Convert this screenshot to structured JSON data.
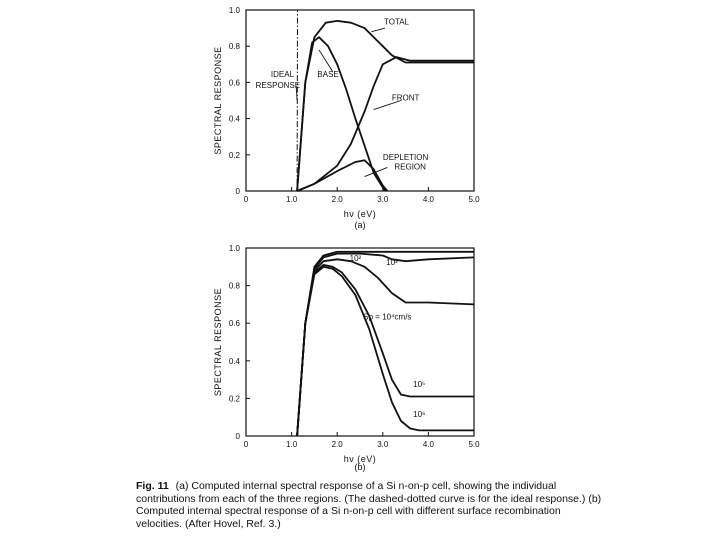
{
  "chart_data": [
    {
      "type": "line",
      "panel_label": "(a)",
      "xlabel": "hν (eV)",
      "ylabel": "SPECTRAL RESPONSE",
      "xlim": [
        0,
        5.0
      ],
      "ylim": [
        0,
        1.0
      ],
      "x_ticks": [
        "0",
        "1.0",
        "2.0",
        "3.0",
        "4.0",
        "5.0"
      ],
      "y_ticks": [
        "0",
        "0.2",
        "0.4",
        "0.6",
        "0.8",
        "1.0"
      ],
      "series": [
        {
          "name": "IDEAL RESPONSE",
          "style": "dash-dot",
          "x": [
            0,
            1.12,
            1.13,
            5.0
          ],
          "y": [
            0,
            0,
            1.0,
            1.0
          ]
        },
        {
          "name": "TOTAL",
          "x": [
            1.12,
            1.3,
            1.5,
            1.75,
            2.0,
            2.3,
            2.6,
            2.8,
            3.0,
            3.2,
            3.5,
            4.0,
            5.0
          ],
          "y": [
            0,
            0.6,
            0.85,
            0.93,
            0.94,
            0.93,
            0.9,
            0.85,
            0.8,
            0.75,
            0.71,
            0.71,
            0.71
          ]
        },
        {
          "name": "BASE",
          "x": [
            1.12,
            1.3,
            1.45,
            1.6,
            1.8,
            2.0,
            2.2,
            2.4,
            2.6,
            2.8,
            3.0,
            3.05
          ],
          "y": [
            0,
            0.6,
            0.82,
            0.85,
            0.8,
            0.7,
            0.56,
            0.4,
            0.25,
            0.1,
            0.02,
            0
          ]
        },
        {
          "name": "FRONT",
          "x": [
            1.12,
            1.5,
            2.0,
            2.3,
            2.6,
            2.8,
            3.0,
            3.3,
            3.6,
            4.0,
            5.0
          ],
          "y": [
            0,
            0.04,
            0.14,
            0.26,
            0.44,
            0.58,
            0.7,
            0.74,
            0.72,
            0.72,
            0.72
          ]
        },
        {
          "name": "DEPLETION REGION",
          "x": [
            1.12,
            1.5,
            2.0,
            2.4,
            2.6,
            2.8,
            3.0,
            3.1
          ],
          "y": [
            0,
            0.04,
            0.11,
            0.16,
            0.17,
            0.12,
            0.03,
            0
          ]
        }
      ],
      "annotations": [
        {
          "text": "TOTAL",
          "x": 3.3,
          "y": 0.92
        },
        {
          "text": "BASE",
          "x": 1.8,
          "y": 0.63
        },
        {
          "text": "FRONT",
          "x": 3.5,
          "y": 0.5
        },
        {
          "text": "IDEAL",
          "x": 0.8,
          "y": 0.63
        },
        {
          "text": "RESPONSE",
          "x": 0.7,
          "y": 0.57
        },
        {
          "text": "DEPLETION",
          "x": 3.5,
          "y": 0.17
        },
        {
          "text": "REGION",
          "x": 3.6,
          "y": 0.12
        }
      ]
    },
    {
      "type": "line",
      "panel_label": "(b)",
      "xlabel": "hν (eV)",
      "ylabel": "SPECTRAL RESPONSE",
      "xlim": [
        0,
        5.0
      ],
      "ylim": [
        0,
        1.0
      ],
      "x_ticks": [
        "0",
        "1.0",
        "2.0",
        "3.0",
        "4.0",
        "5.0"
      ],
      "y_ticks": [
        "0",
        "0.2",
        "0.4",
        "0.6",
        "0.8",
        "1.0"
      ],
      "series": [
        {
          "name": "10²",
          "x": [
            1.12,
            1.3,
            1.5,
            1.7,
            2.0,
            2.5,
            3.0,
            3.5,
            4.0,
            5.0
          ],
          "y": [
            0,
            0.6,
            0.9,
            0.96,
            0.98,
            0.98,
            0.98,
            0.98,
            0.98,
            0.98
          ]
        },
        {
          "name": "10³",
          "x": [
            1.12,
            1.3,
            1.5,
            1.7,
            2.0,
            2.5,
            3.0,
            3.2,
            3.5,
            4.0,
            5.0
          ],
          "y": [
            0,
            0.6,
            0.89,
            0.95,
            0.97,
            0.97,
            0.96,
            0.94,
            0.93,
            0.94,
            0.95
          ]
        },
        {
          "name": "Sp = 10⁴ cm/s",
          "x": [
            1.12,
            1.3,
            1.5,
            1.7,
            2.0,
            2.3,
            2.6,
            2.9,
            3.2,
            3.5,
            4.0,
            5.0
          ],
          "y": [
            0,
            0.6,
            0.88,
            0.93,
            0.94,
            0.93,
            0.9,
            0.84,
            0.76,
            0.71,
            0.71,
            0.7
          ]
        },
        {
          "name": "10⁵",
          "x": [
            1.12,
            1.3,
            1.5,
            1.7,
            1.9,
            2.1,
            2.4,
            2.7,
            3.0,
            3.2,
            3.4,
            3.6,
            4.0,
            5.0
          ],
          "y": [
            0,
            0.6,
            0.87,
            0.91,
            0.9,
            0.87,
            0.78,
            0.64,
            0.44,
            0.3,
            0.22,
            0.21,
            0.21,
            0.21
          ]
        },
        {
          "name": "10⁶",
          "x": [
            1.12,
            1.3,
            1.5,
            1.7,
            1.9,
            2.1,
            2.4,
            2.7,
            3.0,
            3.2,
            3.4,
            3.6,
            3.8,
            4.0,
            5.0
          ],
          "y": [
            0,
            0.6,
            0.86,
            0.9,
            0.89,
            0.85,
            0.75,
            0.57,
            0.33,
            0.18,
            0.08,
            0.04,
            0.03,
            0.03,
            0.03
          ]
        }
      ],
      "annotations": [
        {
          "text": "10²",
          "x": 2.4,
          "y": 0.93
        },
        {
          "text": "10³",
          "x": 3.2,
          "y": 0.91
        },
        {
          "text": "Sp = 10⁴cm/s",
          "x": 3.1,
          "y": 0.62
        },
        {
          "text": "10⁵",
          "x": 3.8,
          "y": 0.26
        },
        {
          "text": "10⁶",
          "x": 3.8,
          "y": 0.1
        }
      ]
    }
  ],
  "caption": {
    "label": "Fig. 11",
    "text": "(a) Computed internal spectral response of a Si n-on-p cell, showing the individual contributions from each of the three regions. (The dashed-dotted curve is for the ideal response.) (b) Computed internal spectral response of a Si n-on-p cell with different surface recombination velocities. (After Hovel, Ref. 3.)"
  }
}
